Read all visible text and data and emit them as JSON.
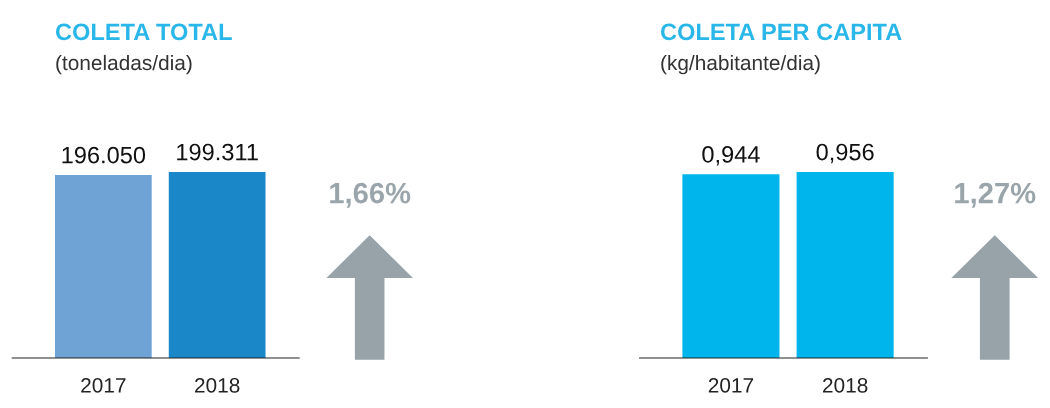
{
  "chart_data": [
    {
      "type": "bar",
      "title": "COLETA TOTAL",
      "subtitle": "(toneladas/dia)",
      "categories": [
        "2017",
        "2018"
      ],
      "values": [
        196050,
        199311
      ],
      "colors": [
        "#6fa3d6",
        "#1a87c9"
      ],
      "value_labels": [
        "196.050",
        "199.311"
      ],
      "annotations": [
        "1,66%"
      ]
    },
    {
      "type": "bar",
      "title": "COLETA PER CAPITA",
      "subtitle": "(kg/habitante/dia)",
      "categories": [
        "2017",
        "2018"
      ],
      "values": [
        0.944,
        0.956
      ],
      "colors": [
        "#00b5ec",
        "#00b5ec"
      ],
      "value_labels": [
        "0,944",
        "0,956"
      ],
      "annotations": [
        "1,27%"
      ]
    }
  ]
}
